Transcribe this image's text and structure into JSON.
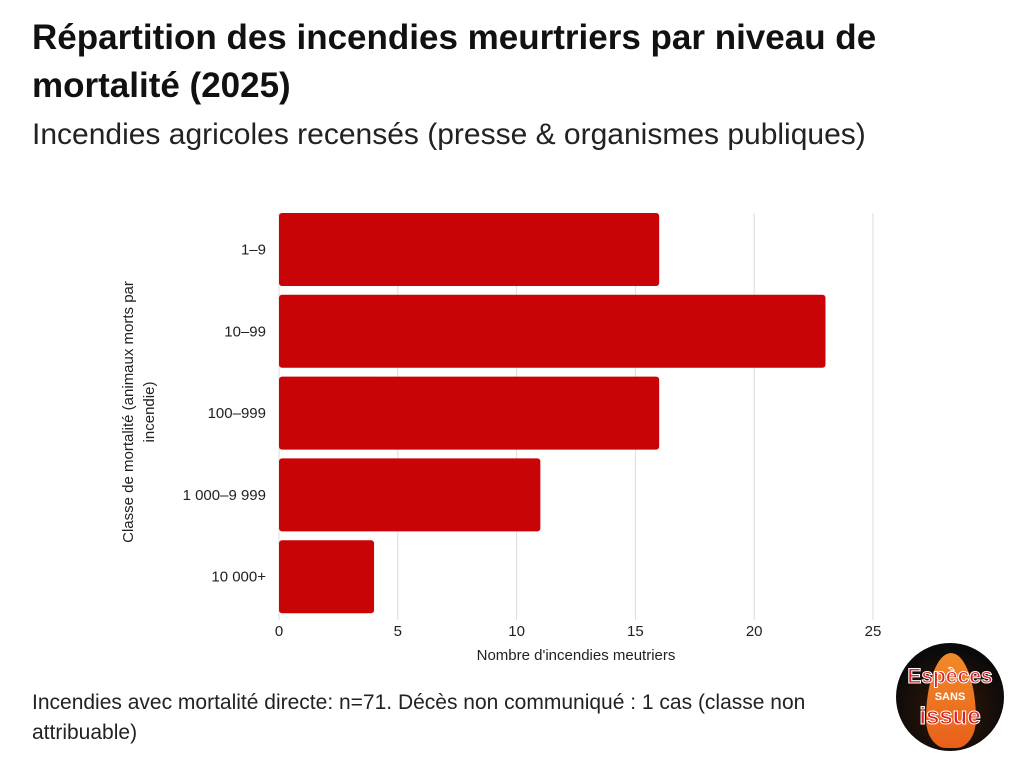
{
  "chart_data": {
    "type": "bar",
    "orientation": "horizontal",
    "title": "Répartition des incendies meurtriers par niveau de mortalité (2025)",
    "subtitle": "Incendies agricoles recensés (presse & organismes publiques)",
    "categories": [
      "1–9",
      "10–99",
      "100–999",
      "1 000–9 999",
      "10 000+"
    ],
    "values": [
      16,
      23,
      16,
      11,
      4
    ],
    "xlabel": "Nombre d'incendies meutriers",
    "ylabel": "Classe de mortalité (animaux morts par incendie)",
    "ylabel_lines": [
      "Classe de mortalité (animaux morts par",
      "incendie)"
    ],
    "xlim": [
      0,
      25
    ],
    "xticks": [
      "0",
      "5",
      "10",
      "15",
      "20",
      "25"
    ],
    "grid": "vertical",
    "bar_color": "#c90406",
    "note": "Incendies avec mortalité directe: n=71. Décès non communiqué : 1 cas (classe non attribuable)"
  },
  "logo": {
    "line1": "Espèces",
    "line2": "SANS",
    "line3": "issue"
  }
}
